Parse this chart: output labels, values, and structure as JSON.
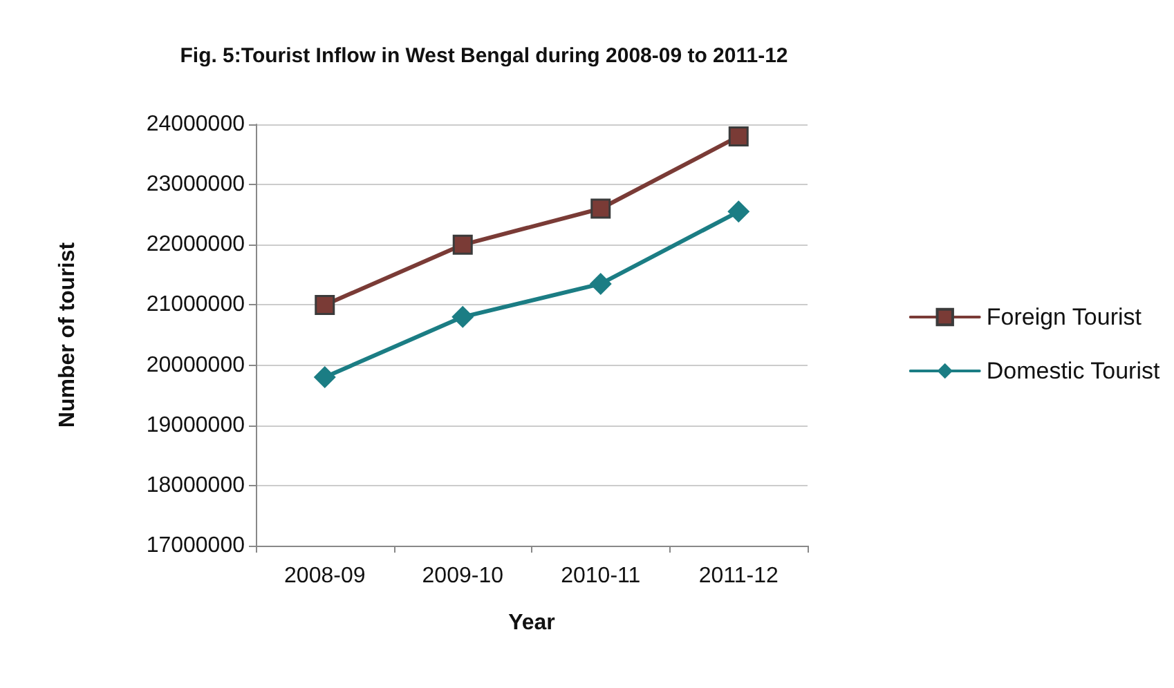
{
  "chart_data": {
    "type": "line",
    "title": "Fig. 5:Tourist Inflow in West Bengal during 2008-09 to 2011-12",
    "xlabel": "Year",
    "ylabel": "Number of tourist",
    "categories": [
      "2008-09",
      "2009-10",
      "2010-11",
      "2011-12"
    ],
    "series": [
      {
        "name": "Foreign Tourist",
        "color": "#7a3b36",
        "marker": "square",
        "values": [
          21000000,
          22000000,
          22600000,
          23800000
        ]
      },
      {
        "name": "Domestic Tourist",
        "color": "#1b7d84",
        "marker": "diamond",
        "values": [
          19800000,
          20800000,
          21350000,
          22550000
        ]
      }
    ],
    "ylim": [
      17000000,
      24000000
    ],
    "yticks": [
      17000000,
      18000000,
      19000000,
      20000000,
      21000000,
      22000000,
      23000000,
      24000000
    ],
    "grid": "y",
    "legend": "right"
  }
}
